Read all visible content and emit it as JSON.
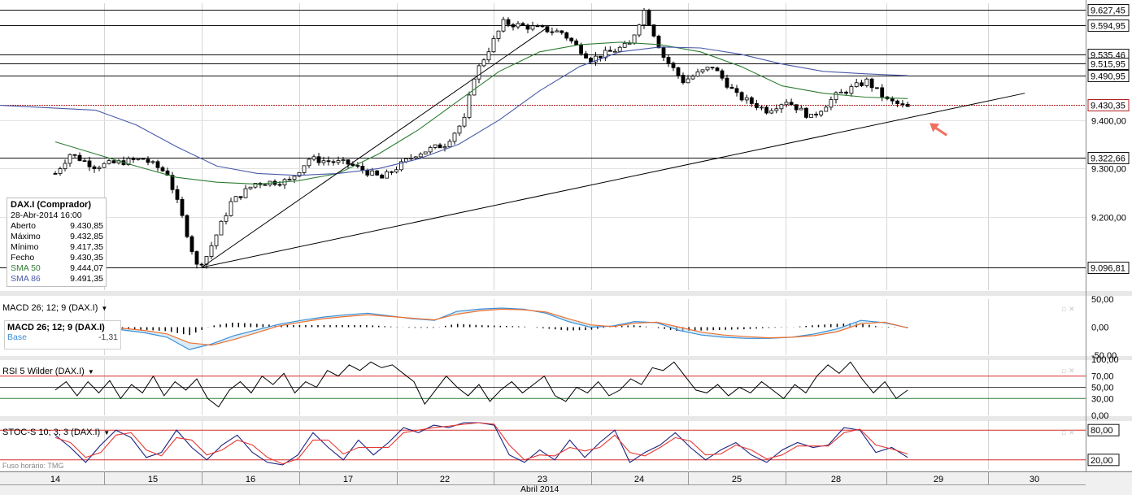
{
  "instrument": {
    "name": "DAX.I (Comprador)",
    "date": "28-Abr-2014 16:00",
    "rows": [
      {
        "label": "Aberto",
        "value": "9.430,85"
      },
      {
        "label": "Máximo",
        "value": "9.432,85"
      },
      {
        "label": "Mínimo",
        "value": "9.417,35"
      },
      {
        "label": "Fecho",
        "value": "9.430,35"
      },
      {
        "label": "SMA 50",
        "value": "9.444,07"
      },
      {
        "label": "SMA 86",
        "value": "9.491,35"
      }
    ]
  },
  "panels": {
    "macd": {
      "title": "MACD 26; 12; 9 (DAX.I)",
      "box_title": "MACD 26; 12; 9 (DAX.I)",
      "base_label": "Base",
      "base_value": "-1,31"
    },
    "rsi": {
      "title": "RSI 5 Wilder (DAX.I)"
    },
    "stoc": {
      "title": "STOC-S 10; 3; 3 (DAX.I)"
    }
  },
  "timezone_label": "Fuso horário: TMG",
  "month_label": "Abril 2014",
  "colors": {
    "sma50": "#2e7d32",
    "sma86": "#4a5aa8",
    "bull": "#ffffff",
    "bear": "#000000",
    "price_line": "#b02020",
    "macd_line": "#3a8fd6",
    "signal_line": "#f07030",
    "stoch_k": "#1a237e",
    "stoch_d": "#e53935",
    "ref_red": "#d32f2f",
    "ref_green": "#2e7d32",
    "arrow": "#f07060"
  },
  "chart_data": [
    {
      "type": "candlestick",
      "title": "DAX.I",
      "x_ticks": [
        "14",
        "15",
        "16",
        "17",
        "22",
        "23",
        "24",
        "25",
        "28",
        "29",
        "30"
      ],
      "xlabel": "Abril 2014",
      "ylim": [
        9050,
        9640
      ],
      "y_ticks": [
        "9.200,00",
        "9.300,00",
        "9.400,00"
      ],
      "levels": [
        "9.627,45",
        "9.594,95",
        "9.535,46",
        "9.515,95",
        "9.490,95",
        "9.430,35",
        "9.322,66",
        "9.096,81"
      ],
      "series": [
        {
          "name": "SMA 50",
          "values": [
            9355,
            9330,
            9305,
            9282,
            9272,
            9268,
            9275,
            9290,
            9330,
            9380,
            9440,
            9500,
            9540,
            9555,
            9560,
            9555,
            9540,
            9510,
            9470,
            9455,
            9447,
            9444
          ]
        },
        {
          "name": "SMA 86",
          "values": [
            9430,
            9420,
            9390,
            9345,
            9305,
            9290,
            9286,
            9290,
            9300,
            9320,
            9350,
            9400,
            9460,
            9510,
            9540,
            9550,
            9548,
            9535,
            9515,
            9500,
            9495,
            9491
          ]
        }
      ],
      "anchors": [
        [
          0,
          9290
        ],
        [
          0.15,
          9330
        ],
        [
          0.4,
          9305
        ],
        [
          0.9,
          9320
        ],
        [
          1.15,
          9290
        ],
        [
          1.3,
          9200
        ],
        [
          1.45,
          9100
        ],
        [
          1.55,
          9120
        ],
        [
          1.8,
          9230
        ],
        [
          2.05,
          9270
        ],
        [
          2.4,
          9275
        ],
        [
          2.6,
          9320
        ],
        [
          3.0,
          9310
        ],
        [
          3.35,
          9280
        ],
        [
          3.7,
          9330
        ],
        [
          4.0,
          9350
        ],
        [
          4.2,
          9400
        ],
        [
          4.3,
          9490
        ],
        [
          4.6,
          9600
        ],
        [
          4.9,
          9590
        ],
        [
          5.2,
          9580
        ],
        [
          5.5,
          9525
        ],
        [
          5.9,
          9555
        ],
        [
          6.05,
          9625
        ],
        [
          6.25,
          9530
        ],
        [
          6.45,
          9480
        ],
        [
          6.75,
          9510
        ],
        [
          7.0,
          9450
        ],
        [
          7.3,
          9420
        ],
        [
          7.5,
          9440
        ],
        [
          7.75,
          9405
        ],
        [
          8.0,
          9450
        ],
        [
          8.3,
          9480
        ],
        [
          8.5,
          9440
        ],
        [
          8.7,
          9425
        ]
      ],
      "trendlines": [
        {
          "from": [
            1.5,
            9096.81
          ],
          "to": [
            5.05,
            9590
          ]
        },
        {
          "from": [
            1.5,
            9096.81
          ],
          "to": [
            9.9,
            9455
          ]
        }
      ]
    },
    {
      "type": "line",
      "title": "MACD 26; 12; 9 (DAX.I)",
      "ylim": [
        -50,
        50
      ],
      "y_ticks": [
        "50,00",
        "0,00",
        "-50,00"
      ],
      "series": [
        {
          "name": "MACD",
          "values": [
            8,
            4,
            0,
            -5,
            -10,
            -18,
            -40,
            -30,
            -15,
            -5,
            5,
            12,
            18,
            22,
            25,
            20,
            15,
            12,
            28,
            32,
            34,
            32,
            25,
            10,
            0,
            2,
            10,
            8,
            -6,
            -14,
            -18,
            -20,
            -20,
            -18,
            -12,
            -3,
            12,
            8,
            -1
          ]
        },
        {
          "name": "Base",
          "values": [
            5,
            3,
            1,
            -2,
            -6,
            -12,
            -28,
            -32,
            -22,
            -10,
            2,
            9,
            15,
            19,
            22,
            19,
            16,
            13,
            23,
            29,
            32,
            31,
            27,
            15,
            4,
            1,
            7,
            9,
            0,
            -9,
            -14,
            -17,
            -19,
            -18,
            -15,
            -8,
            6,
            9,
            -1.31
          ]
        }
      ]
    },
    {
      "type": "line",
      "title": "RSI 5 Wilder (DAX.I)",
      "ylim": [
        0,
        100
      ],
      "y_ticks": [
        "100,00",
        "70,00",
        "50,00",
        "30,00",
        "0,00"
      ],
      "reference_lines": [
        70,
        50,
        30
      ],
      "series": [
        {
          "name": "RSI",
          "values": [
            45,
            60,
            35,
            60,
            40,
            62,
            30,
            55,
            40,
            70,
            35,
            60,
            45,
            65,
            30,
            15,
            45,
            60,
            40,
            70,
            55,
            75,
            40,
            60,
            50,
            80,
            70,
            90,
            80,
            95,
            85,
            90,
            75,
            60,
            20,
            45,
            70,
            50,
            35,
            55,
            25,
            45,
            60,
            40,
            55,
            70,
            35,
            25,
            50,
            40,
            60,
            35,
            45,
            65,
            55,
            85,
            80,
            95,
            70,
            45,
            40,
            55,
            35,
            50,
            40,
            60,
            45,
            30,
            55,
            40,
            70,
            90,
            75,
            95,
            65,
            40,
            60,
            30,
            45
          ]
        }
      ]
    },
    {
      "type": "line",
      "title": "STOC-S 10; 3; 3 (DAX.I)",
      "ylim": [
        0,
        100
      ],
      "y_ticks": [
        "80,00",
        "20,00"
      ],
      "reference_lines": [
        80,
        20
      ],
      "series": [
        {
          "name": "%K",
          "values": [
            70,
            45,
            15,
            50,
            80,
            65,
            25,
            35,
            80,
            45,
            20,
            50,
            70,
            35,
            15,
            10,
            30,
            75,
            45,
            20,
            60,
            30,
            55,
            85,
            75,
            90,
            85,
            95,
            95,
            90,
            30,
            15,
            40,
            20,
            60,
            25,
            55,
            80,
            15,
            35,
            50,
            75,
            45,
            20,
            40,
            55,
            30,
            15,
            40,
            55,
            45,
            50,
            85,
            80,
            35,
            45,
            25
          ]
        },
        {
          "name": "%D",
          "values": [
            65,
            55,
            25,
            35,
            70,
            75,
            40,
            28,
            65,
            60,
            30,
            40,
            60,
            50,
            25,
            12,
            22,
            60,
            60,
            32,
            45,
            45,
            45,
            75,
            80,
            85,
            88,
            92,
            95,
            92,
            50,
            20,
            30,
            28,
            45,
            38,
            45,
            70,
            35,
            28,
            45,
            65,
            58,
            30,
            32,
            50,
            40,
            22,
            30,
            48,
            48,
            48,
            75,
            82,
            50,
            42,
            32
          ]
        }
      ]
    }
  ]
}
